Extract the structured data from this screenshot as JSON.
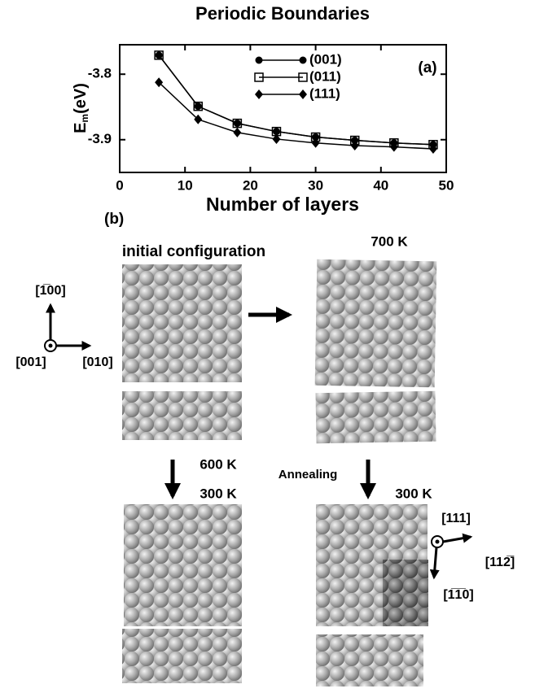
{
  "chart_data": {
    "type": "line",
    "title": "Periodic Boundaries",
    "xlabel": "Number of layers",
    "ylabel": "E",
    "ylabel_sub": "m",
    "ylabel_unit": "(eV)",
    "annotation": "(a)",
    "x": [
      6,
      12,
      18,
      24,
      30,
      36,
      42,
      48
    ],
    "series": [
      {
        "name": "(001)",
        "color": "#000000",
        "marker": "circle",
        "values": [
          -3.771,
          -3.849,
          -3.875,
          -3.8875,
          -3.896,
          -3.901,
          -3.905,
          -3.9075
        ]
      },
      {
        "name": "(011)",
        "color": "#000000",
        "marker": "square",
        "values": [
          -3.771,
          -3.849,
          -3.875,
          -3.8875,
          -3.896,
          -3.901,
          -3.905,
          -3.9075
        ]
      },
      {
        "name": "(111)",
        "color": "#000000",
        "marker": "diamond",
        "values": [
          -3.8125,
          -3.869,
          -3.889,
          -3.899,
          -3.905,
          -3.909,
          -3.911,
          -3.914
        ]
      }
    ],
    "xlim": [
      0,
      50
    ],
    "xticks": [
      0,
      10,
      20,
      30,
      40,
      50
    ],
    "ylim": [
      -3.95,
      -3.755
    ],
    "yticks": [
      -3.9,
      -3.8
    ],
    "grid": false,
    "legend": "upper right"
  },
  "panel_b": {
    "label": "(b)",
    "initial": "initial configuration",
    "t700": "700 K",
    "t600": "600 K",
    "annealing": "Annealing",
    "t300_left": "300 K",
    "t300_right": "300 K",
    "axes_left": {
      "up": "[1̅00]",
      "out": "[001]",
      "right": "[010]"
    },
    "axes_right": {
      "out": "[111]",
      "right": "[112̅]",
      "down": "[1̅1̅0]"
    }
  }
}
